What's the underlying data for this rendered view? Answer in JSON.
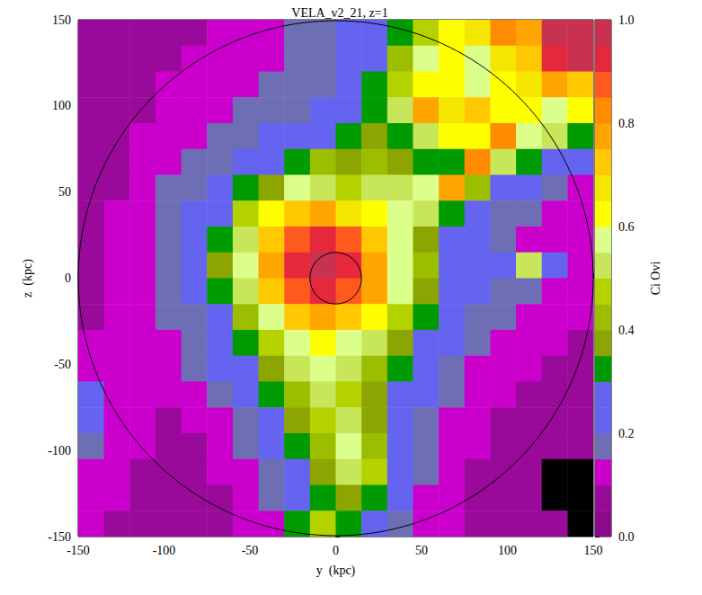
{
  "chart_data": {
    "type": "heatmap",
    "title": "VELA_v2_21, z=1",
    "x_label": "y  (kpc)",
    "y_label": "z  (kpc)",
    "xlim": [
      -150,
      150
    ],
    "ylim": [
      -150,
      150
    ],
    "xticks": [
      -150,
      -100,
      -50,
      0,
      50,
      100,
      150
    ],
    "yticks": [
      -150,
      -100,
      -50,
      0,
      50,
      100,
      150
    ],
    "cells": {
      "x_edges": [
        -150,
        -135,
        -120,
        -105,
        -90,
        -75,
        -60,
        -45,
        -30,
        -15,
        0,
        15,
        30,
        45,
        60,
        75,
        90,
        105,
        120,
        135,
        150
      ],
      "y_edges": [
        150,
        135,
        120,
        105,
        90,
        75,
        60,
        45,
        30,
        15,
        0,
        -15,
        -30,
        -45,
        -60,
        -75,
        -90,
        -105,
        -120,
        -135,
        -150
      ],
      "values": [
        [
          0.07,
          0.07,
          0.07,
          0.07,
          0.08,
          0.1,
          0.12,
          0.12,
          0.15,
          0.15,
          0.2,
          0.22,
          0.3,
          0.45,
          0.6,
          0.65,
          0.8,
          0.75,
          0.95,
          0.95
        ],
        [
          0.07,
          0.07,
          0.07,
          0.08,
          0.1,
          0.1,
          0.12,
          0.12,
          0.15,
          0.15,
          0.2,
          0.25,
          0.4,
          0.55,
          0.6,
          0.55,
          0.65,
          0.7,
          0.9,
          0.95
        ],
        [
          0.07,
          0.07,
          0.08,
          0.1,
          0.1,
          0.12,
          0.12,
          0.15,
          0.15,
          0.18,
          0.2,
          0.3,
          0.45,
          0.6,
          0.6,
          0.55,
          0.6,
          0.65,
          0.75,
          0.7
        ],
        [
          0.07,
          0.07,
          0.08,
          0.1,
          0.12,
          0.12,
          0.15,
          0.15,
          0.18,
          0.2,
          0.22,
          0.3,
          0.5,
          0.75,
          0.65,
          0.7,
          0.6,
          0.6,
          0.55,
          0.6
        ],
        [
          0.07,
          0.08,
          0.1,
          0.12,
          0.12,
          0.15,
          0.18,
          0.2,
          0.2,
          0.25,
          0.3,
          0.35,
          0.3,
          0.5,
          0.6,
          0.6,
          0.8,
          0.55,
          0.5,
          0.3
        ],
        [
          0.07,
          0.08,
          0.1,
          0.12,
          0.15,
          0.18,
          0.2,
          0.2,
          0.3,
          0.4,
          0.35,
          0.4,
          0.35,
          0.3,
          0.3,
          0.8,
          0.5,
          0.3,
          0.2,
          0.2
        ],
        [
          0.07,
          0.08,
          0.1,
          0.15,
          0.18,
          0.2,
          0.3,
          0.35,
          0.55,
          0.5,
          0.45,
          0.5,
          0.5,
          0.55,
          0.75,
          0.4,
          0.2,
          0.2,
          0.15,
          0.12
        ],
        [
          0.07,
          0.1,
          0.12,
          0.15,
          0.2,
          0.2,
          0.45,
          0.6,
          0.7,
          0.75,
          0.65,
          0.6,
          0.55,
          0.5,
          0.3,
          0.2,
          0.18,
          0.15,
          0.12,
          0.1
        ],
        [
          0.08,
          0.1,
          0.12,
          0.15,
          0.2,
          0.3,
          0.5,
          0.7,
          0.85,
          0.9,
          0.85,
          0.7,
          0.55,
          0.35,
          0.25,
          0.2,
          0.15,
          0.12,
          0.1,
          0.1
        ],
        [
          0.08,
          0.1,
          0.12,
          0.15,
          0.2,
          0.35,
          0.55,
          0.75,
          0.9,
          0.95,
          0.9,
          0.75,
          0.55,
          0.4,
          0.25,
          0.2,
          0.2,
          0.5,
          0.2,
          0.1
        ],
        [
          0.08,
          0.1,
          0.12,
          0.15,
          0.2,
          0.3,
          0.5,
          0.7,
          0.85,
          0.9,
          0.85,
          0.75,
          0.55,
          0.35,
          0.25,
          0.2,
          0.18,
          0.15,
          0.12,
          0.1
        ],
        [
          0.08,
          0.1,
          0.12,
          0.15,
          0.18,
          0.25,
          0.4,
          0.55,
          0.7,
          0.75,
          0.7,
          0.6,
          0.45,
          0.3,
          0.22,
          0.18,
          0.15,
          0.12,
          0.1,
          0.1
        ],
        [
          0.1,
          0.1,
          0.12,
          0.12,
          0.15,
          0.2,
          0.3,
          0.45,
          0.55,
          0.6,
          0.55,
          0.5,
          0.35,
          0.25,
          0.2,
          0.15,
          0.12,
          0.1,
          0.1,
          0.08
        ],
        [
          0.12,
          0.1,
          0.1,
          0.12,
          0.15,
          0.2,
          0.25,
          0.35,
          0.5,
          0.55,
          0.5,
          0.4,
          0.3,
          0.2,
          0.15,
          0.12,
          0.1,
          0.1,
          0.08,
          0.08
        ],
        [
          0.2,
          0.12,
          0.1,
          0.1,
          0.12,
          0.15,
          0.2,
          0.3,
          0.4,
          0.5,
          0.45,
          0.35,
          0.25,
          0.2,
          0.15,
          0.12,
          0.1,
          0.08,
          0.08,
          0.08
        ],
        [
          0.2,
          0.12,
          0.1,
          0.08,
          0.1,
          0.12,
          0.18,
          0.25,
          0.35,
          0.45,
          0.5,
          0.35,
          0.25,
          0.18,
          0.12,
          0.1,
          0.08,
          0.08,
          0.08,
          0.08
        ],
        [
          0.15,
          0.12,
          0.1,
          0.08,
          0.08,
          0.1,
          0.15,
          0.2,
          0.3,
          0.4,
          0.55,
          0.4,
          0.25,
          0.15,
          0.12,
          0.1,
          0.08,
          0.08,
          0.08,
          0.08
        ],
        [
          0.12,
          0.1,
          0.08,
          0.08,
          0.08,
          0.1,
          0.12,
          0.18,
          0.25,
          0.35,
          0.5,
          0.45,
          0.25,
          0.15,
          0.1,
          0.08,
          0.08,
          0.08,
          null,
          null
        ],
        [
          0.1,
          0.1,
          0.08,
          0.08,
          0.08,
          0.08,
          0.1,
          0.15,
          0.2,
          0.3,
          0.35,
          0.3,
          0.2,
          0.12,
          0.1,
          0.08,
          0.08,
          0.08,
          null,
          null
        ],
        [
          0.1,
          0.08,
          0.08,
          0.08,
          0.08,
          0.08,
          0.1,
          0.12,
          0.3,
          0.45,
          0.3,
          0.2,
          0.15,
          0.12,
          0.1,
          0.08,
          0.08,
          0.08,
          0.08,
          null
        ]
      ]
    },
    "circles": [
      {
        "center": [
          0,
          0
        ],
        "radius": 150
      },
      {
        "center": [
          0,
          0
        ],
        "radius": 15
      }
    ],
    "colorbar": {
      "label": "Ci Ovi",
      "range": [
        0,
        1
      ],
      "ticks": [
        {
          "value": 0,
          "label": "0.0"
        },
        {
          "value": 0.2,
          "label": "0.2"
        },
        {
          "value": 0.4,
          "label": "0.4"
        },
        {
          "value": 0.6,
          "label": "0.6"
        },
        {
          "value": 0.8,
          "label": "0.8"
        },
        {
          "value": 1,
          "label": "1.0"
        }
      ],
      "colors": [
        "#8b0a8b",
        "#9a0a9a",
        "#cc00cc",
        "#6e6eb4",
        "#6464f0",
        "#6464f0",
        "#009b00",
        "#8ca500",
        "#9bbf00",
        "#b4d200",
        "#c8e65a",
        "#dcff8c",
        "#ffff00",
        "#f5e600",
        "#ffc800",
        "#ffa500",
        "#ff8c00",
        "#ff5a1e",
        "#e6283c",
        "#c83250"
      ]
    }
  }
}
